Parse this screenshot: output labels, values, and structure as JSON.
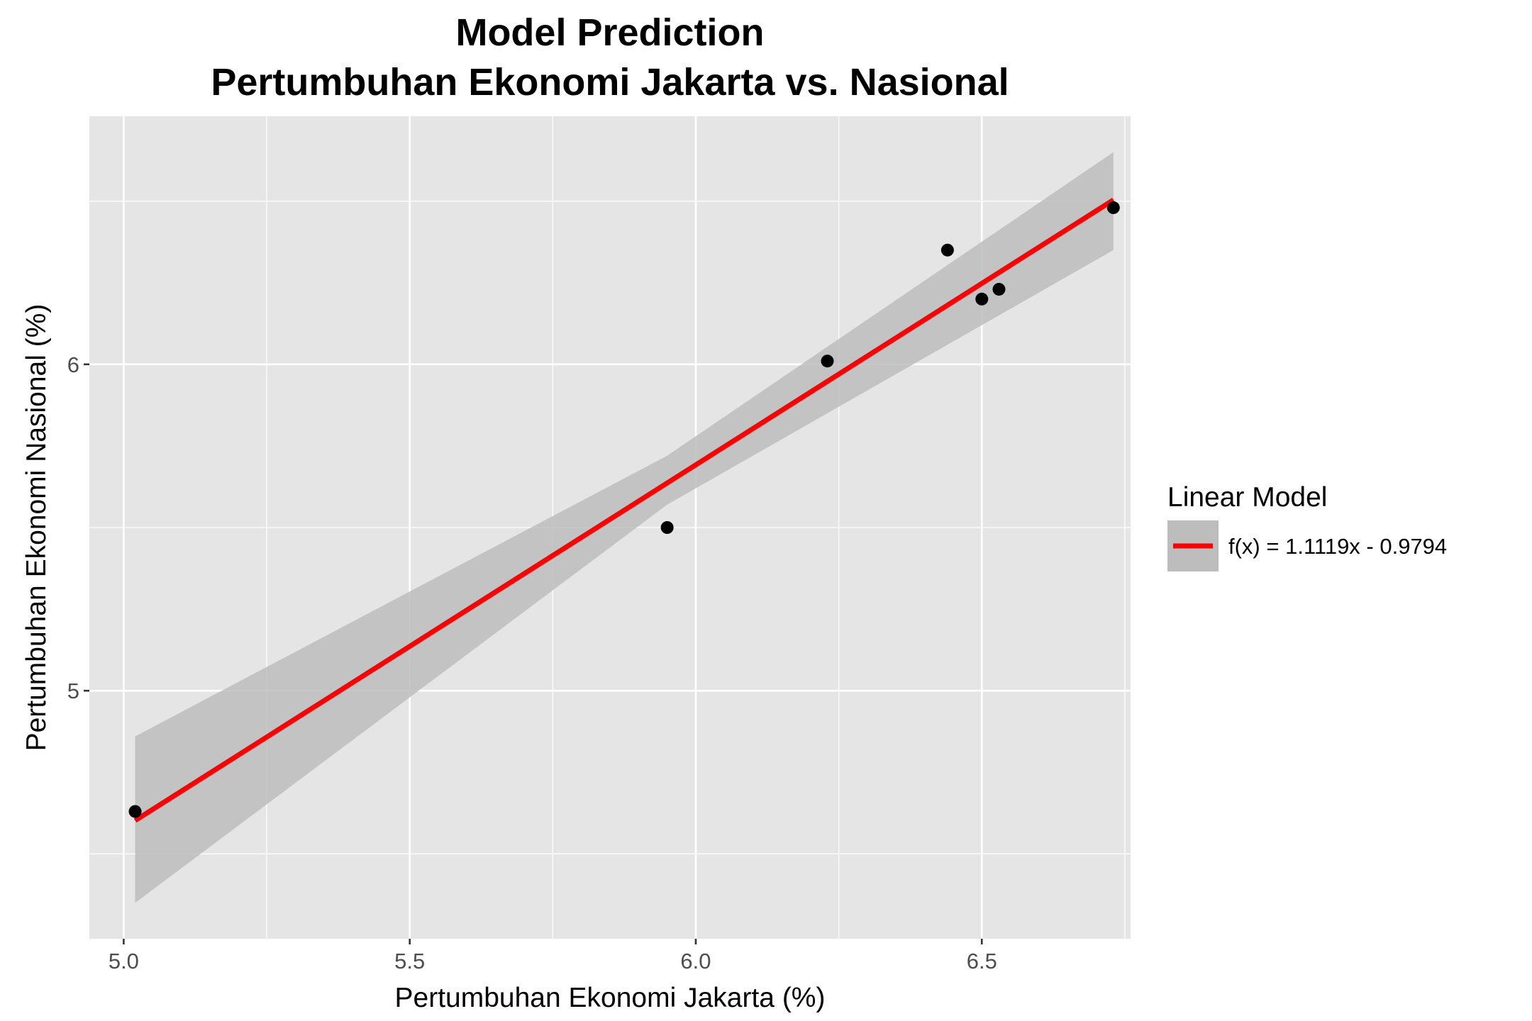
{
  "chart_data": {
    "type": "scatter",
    "title": [
      "Model Prediction",
      "Pertumbuhan Ekonomi Jakarta vs. Nasional"
    ],
    "xlabel": "Pertumbuhan Ekonomi Jakarta (%)",
    "ylabel": "Pertumbuhan Ekonomi Nasional (%)",
    "xlim": [
      4.94,
      6.76
    ],
    "ylim": [
      4.24,
      6.76
    ],
    "x_ticks": [
      5.0,
      5.5,
      6.0,
      6.5
    ],
    "x_tick_labels": [
      "5.0",
      "5.5",
      "6.0",
      "6.5"
    ],
    "y_ticks": [
      5,
      6
    ],
    "y_tick_labels": [
      "5",
      "6"
    ],
    "x_minor_ticks": [
      5.25,
      5.75,
      6.25,
      6.75
    ],
    "y_minor_ticks": [
      4.5,
      5.5,
      6.5
    ],
    "grid": true,
    "points": [
      {
        "x": 5.02,
        "y": 4.63
      },
      {
        "x": 5.95,
        "y": 5.5
      },
      {
        "x": 6.23,
        "y": 6.01
      },
      {
        "x": 6.44,
        "y": 6.35
      },
      {
        "x": 6.5,
        "y": 6.2
      },
      {
        "x": 6.53,
        "y": 6.23
      },
      {
        "x": 6.73,
        "y": 6.48
      }
    ],
    "fit_line": {
      "slope": 1.1119,
      "intercept": -0.9794,
      "x_range": [
        5.02,
        6.73
      ],
      "color": "#ff0000"
    },
    "confidence_band": {
      "x": [
        5.02,
        5.95,
        6.73
      ],
      "lower": [
        4.35,
        5.57,
        6.35
      ],
      "upper": [
        4.86,
        5.72,
        6.65
      ],
      "color": "#bdbdbd"
    },
    "legend": {
      "title": "Linear Model",
      "entries": [
        {
          "label": "f(x) = 1.1119x - 0.9794",
          "color": "#ff0000"
        }
      ],
      "position": "right"
    },
    "colors": {
      "panel_background": "#e5e5e5",
      "grid": "#ffffff",
      "points": "#000000"
    }
  }
}
